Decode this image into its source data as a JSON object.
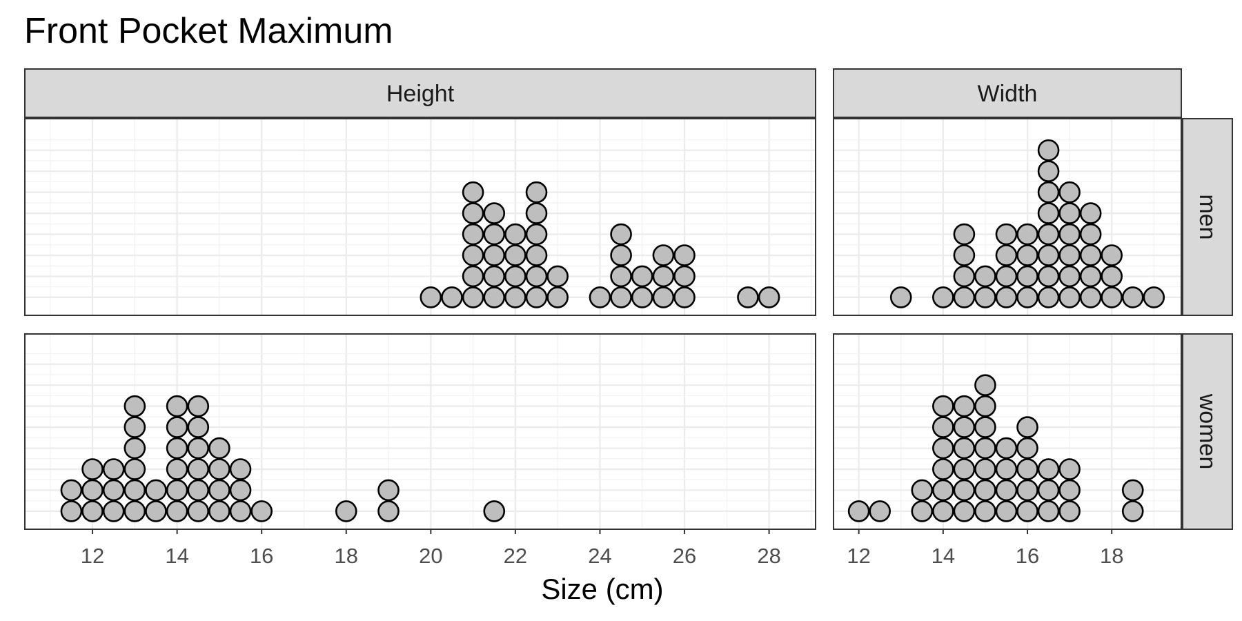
{
  "chart_data": {
    "type": "dotplot",
    "title": "Front Pocket Maximum",
    "xlabel": "Size (cm)",
    "ylabel": "",
    "facet_columns": [
      "Height",
      "Width"
    ],
    "facet_rows": [
      "men",
      "women"
    ],
    "grid": true,
    "y_axis_labels_shown": false,
    "stack_levels": 8,
    "panels": [
      {
        "column": "Height",
        "row": "men",
        "xlim": [
          10.4,
          29.1
        ],
        "x_ticks": [
          12,
          14,
          16,
          18,
          20,
          22,
          24,
          26,
          28
        ],
        "bins": [
          {
            "x": 20.0,
            "count": 1
          },
          {
            "x": 20.5,
            "count": 1
          },
          {
            "x": 21.0,
            "count": 6
          },
          {
            "x": 21.5,
            "count": 5
          },
          {
            "x": 22.0,
            "count": 4
          },
          {
            "x": 22.5,
            "count": 6
          },
          {
            "x": 23.0,
            "count": 2
          },
          {
            "x": 24.0,
            "count": 1
          },
          {
            "x": 24.5,
            "count": 4
          },
          {
            "x": 25.0,
            "count": 2
          },
          {
            "x": 25.5,
            "count": 3
          },
          {
            "x": 26.0,
            "count": 3
          },
          {
            "x": 27.5,
            "count": 1
          },
          {
            "x": 28.0,
            "count": 1
          }
        ]
      },
      {
        "column": "Width",
        "row": "men",
        "xlim": [
          11.4,
          19.65
        ],
        "x_ticks": [
          12,
          14,
          16,
          18
        ],
        "bins": [
          {
            "x": 13.0,
            "count": 1
          },
          {
            "x": 14.0,
            "count": 1
          },
          {
            "x": 14.5,
            "count": 4
          },
          {
            "x": 15.0,
            "count": 2
          },
          {
            "x": 15.5,
            "count": 4
          },
          {
            "x": 16.0,
            "count": 4
          },
          {
            "x": 16.5,
            "count": 8
          },
          {
            "x": 17.0,
            "count": 6
          },
          {
            "x": 17.5,
            "count": 5
          },
          {
            "x": 18.0,
            "count": 3
          },
          {
            "x": 18.5,
            "count": 1
          },
          {
            "x": 19.0,
            "count": 1
          }
        ]
      },
      {
        "column": "Height",
        "row": "women",
        "xlim": [
          10.4,
          29.1
        ],
        "x_ticks": [
          12,
          14,
          16,
          18,
          20,
          22,
          24,
          26,
          28
        ],
        "bins": [
          {
            "x": 11.5,
            "count": 2
          },
          {
            "x": 12.0,
            "count": 3
          },
          {
            "x": 12.5,
            "count": 3
          },
          {
            "x": 13.0,
            "count": 6
          },
          {
            "x": 13.5,
            "count": 2
          },
          {
            "x": 14.0,
            "count": 6
          },
          {
            "x": 14.5,
            "count": 6
          },
          {
            "x": 15.0,
            "count": 4
          },
          {
            "x": 15.5,
            "count": 3
          },
          {
            "x": 16.0,
            "count": 1
          },
          {
            "x": 18.0,
            "count": 1
          },
          {
            "x": 19.0,
            "count": 2
          },
          {
            "x": 21.5,
            "count": 1
          }
        ]
      },
      {
        "column": "Width",
        "row": "women",
        "xlim": [
          11.4,
          19.65
        ],
        "x_ticks": [
          12,
          14,
          16,
          18
        ],
        "bins": [
          {
            "x": 12.0,
            "count": 1
          },
          {
            "x": 12.5,
            "count": 1
          },
          {
            "x": 13.5,
            "count": 2
          },
          {
            "x": 14.0,
            "count": 6
          },
          {
            "x": 14.5,
            "count": 6
          },
          {
            "x": 15.0,
            "count": 7
          },
          {
            "x": 15.5,
            "count": 4
          },
          {
            "x": 16.0,
            "count": 5
          },
          {
            "x": 16.5,
            "count": 3
          },
          {
            "x": 17.0,
            "count": 3
          },
          {
            "x": 18.5,
            "count": 2
          }
        ]
      }
    ],
    "colors": {
      "dot_fill": "#bebebe",
      "dot_stroke": "#000000",
      "strip_fill": "#d9d9d9",
      "panel_border": "#333333",
      "grid_major": "#ebebeb",
      "grid_minor": "#f2f2f2",
      "tick_label": "#4d4d4d"
    }
  }
}
